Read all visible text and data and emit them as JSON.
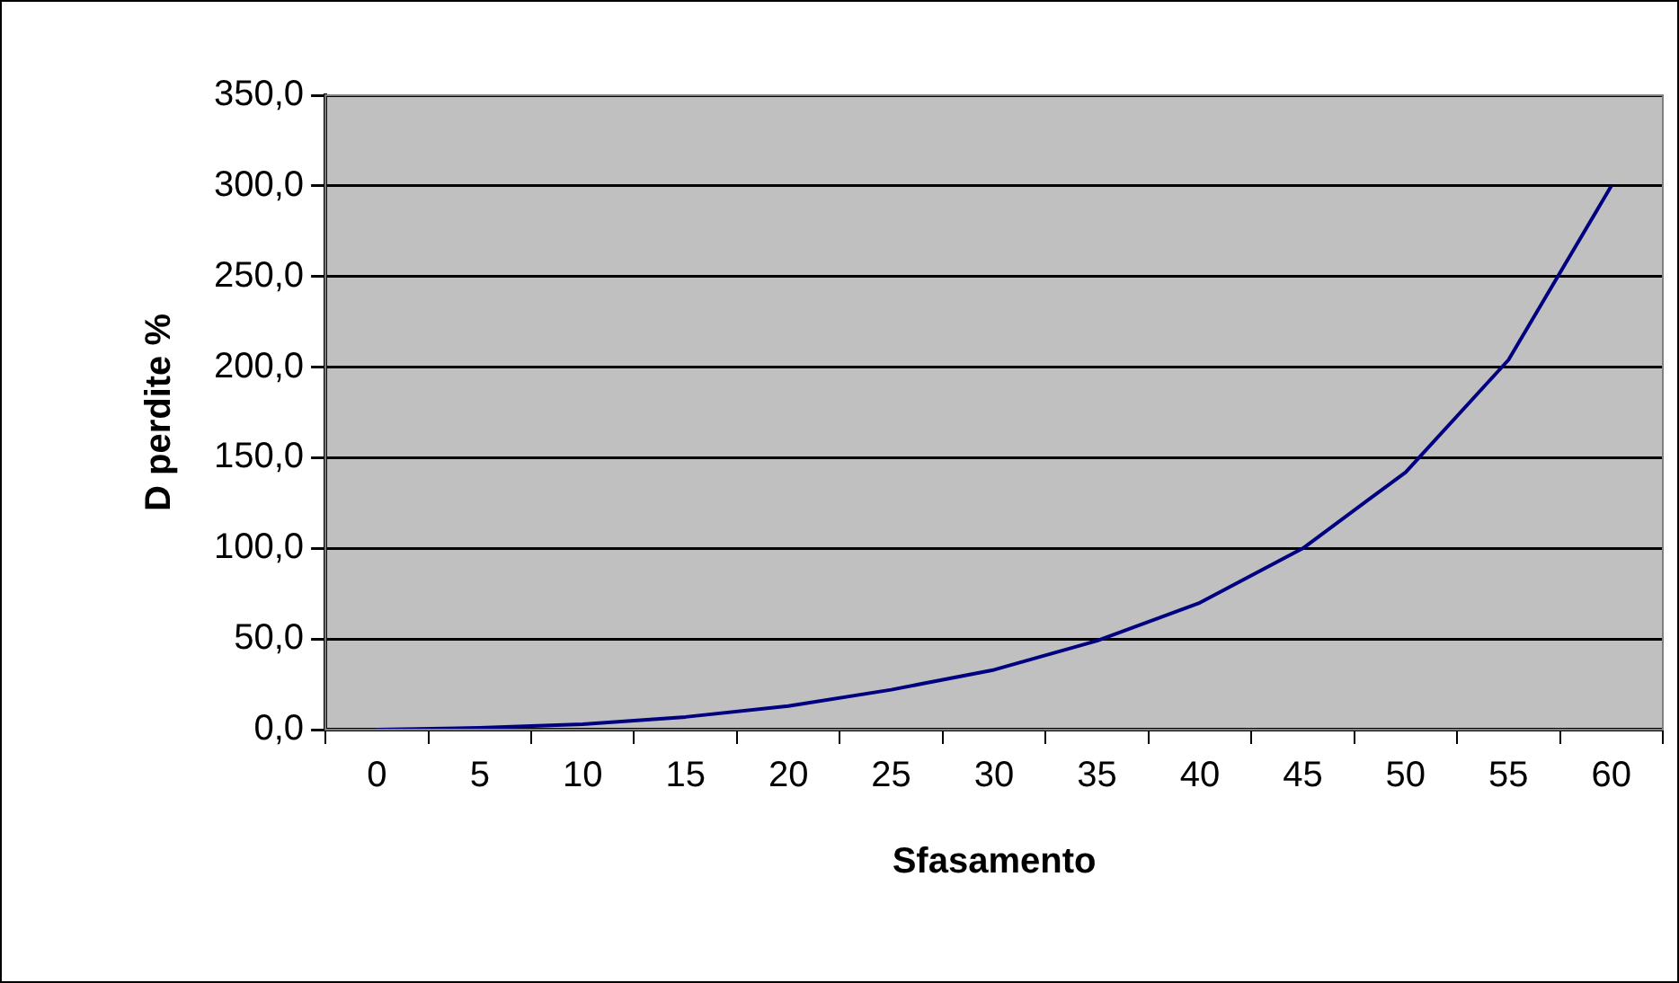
{
  "chart_data": {
    "type": "line",
    "xlabel": "Sfasamento",
    "ylabel": "D perdite %",
    "categories": [
      "0",
      "5",
      "10",
      "15",
      "20",
      "25",
      "30",
      "35",
      "40",
      "45",
      "50",
      "55",
      "60"
    ],
    "series": [
      {
        "color": "#000080",
        "values": [
          0,
          1,
          3,
          7,
          13,
          22,
          33,
          49,
          70,
          100,
          142,
          204,
          300
        ]
      }
    ],
    "ylim": [
      0,
      350
    ],
    "yticks": [
      {
        "value": 0,
        "label": "0,0"
      },
      {
        "value": 50,
        "label": "50,0"
      },
      {
        "value": 100,
        "label": "100,0"
      },
      {
        "value": 150,
        "label": "150,0"
      },
      {
        "value": 200,
        "label": "200,0"
      },
      {
        "value": 250,
        "label": "250,0"
      },
      {
        "value": 300,
        "label": "300,0"
      },
      {
        "value": 350,
        "label": "350,0"
      }
    ],
    "grid": "y",
    "legend": false,
    "marker": "none",
    "line_style": "solid"
  }
}
